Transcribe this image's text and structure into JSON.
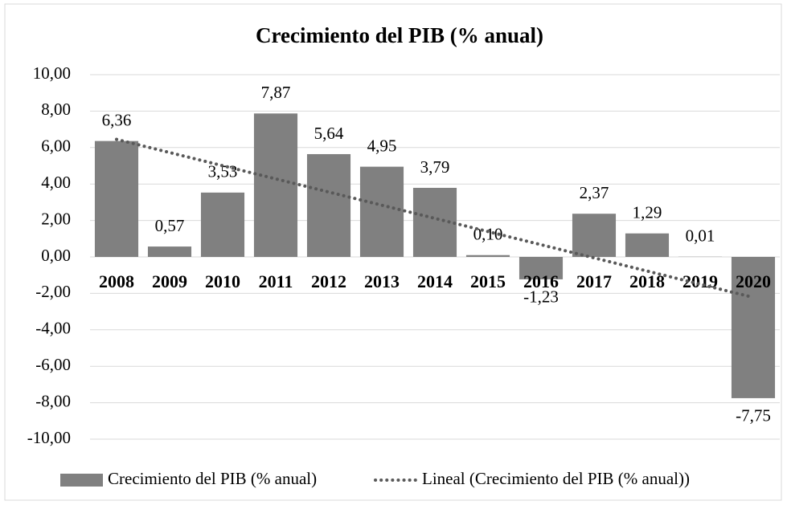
{
  "chart_data": {
    "type": "bar",
    "title": "Crecimiento  del PIB (% anual)",
    "categories": [
      "2008",
      "2009",
      "2010",
      "2011",
      "2012",
      "2013",
      "2014",
      "2015",
      "2016",
      "2017",
      "2018",
      "2019",
      "2020"
    ],
    "series": [
      {
        "name": "Crecimiento del PIB (% anual)",
        "color": "#808080",
        "values": [
          6.36,
          0.57,
          3.53,
          7.87,
          5.64,
          4.95,
          3.79,
          0.1,
          -1.23,
          2.37,
          1.29,
          0.01,
          -7.75
        ],
        "value_labels": [
          "6,36",
          "0,57",
          "3,53",
          "7,87",
          "5,64",
          "4,95",
          "3,79",
          "0,10",
          "-1,23",
          "2,37",
          "1,29",
          "0,01",
          "-7,75"
        ]
      }
    ],
    "trendline": {
      "name": "Lineal (Crecimiento del PIB (% anual))",
      "color": "#595959"
    },
    "ylim": [
      -10,
      10
    ],
    "yticks": [
      {
        "value": -10,
        "label": "-10,00"
      },
      {
        "value": -8,
        "label": "-8,00"
      },
      {
        "value": -6,
        "label": "-6,00"
      },
      {
        "value": -4,
        "label": "-4,00"
      },
      {
        "value": -2,
        "label": "-2,00"
      },
      {
        "value": 0,
        "label": "0,00"
      },
      {
        "value": 2,
        "label": "2,00"
      },
      {
        "value": 4,
        "label": "4,00"
      },
      {
        "value": 6,
        "label": "6,00"
      },
      {
        "value": 8,
        "label": "8,00"
      },
      {
        "value": 10,
        "label": "10,00"
      }
    ],
    "grid": true
  }
}
